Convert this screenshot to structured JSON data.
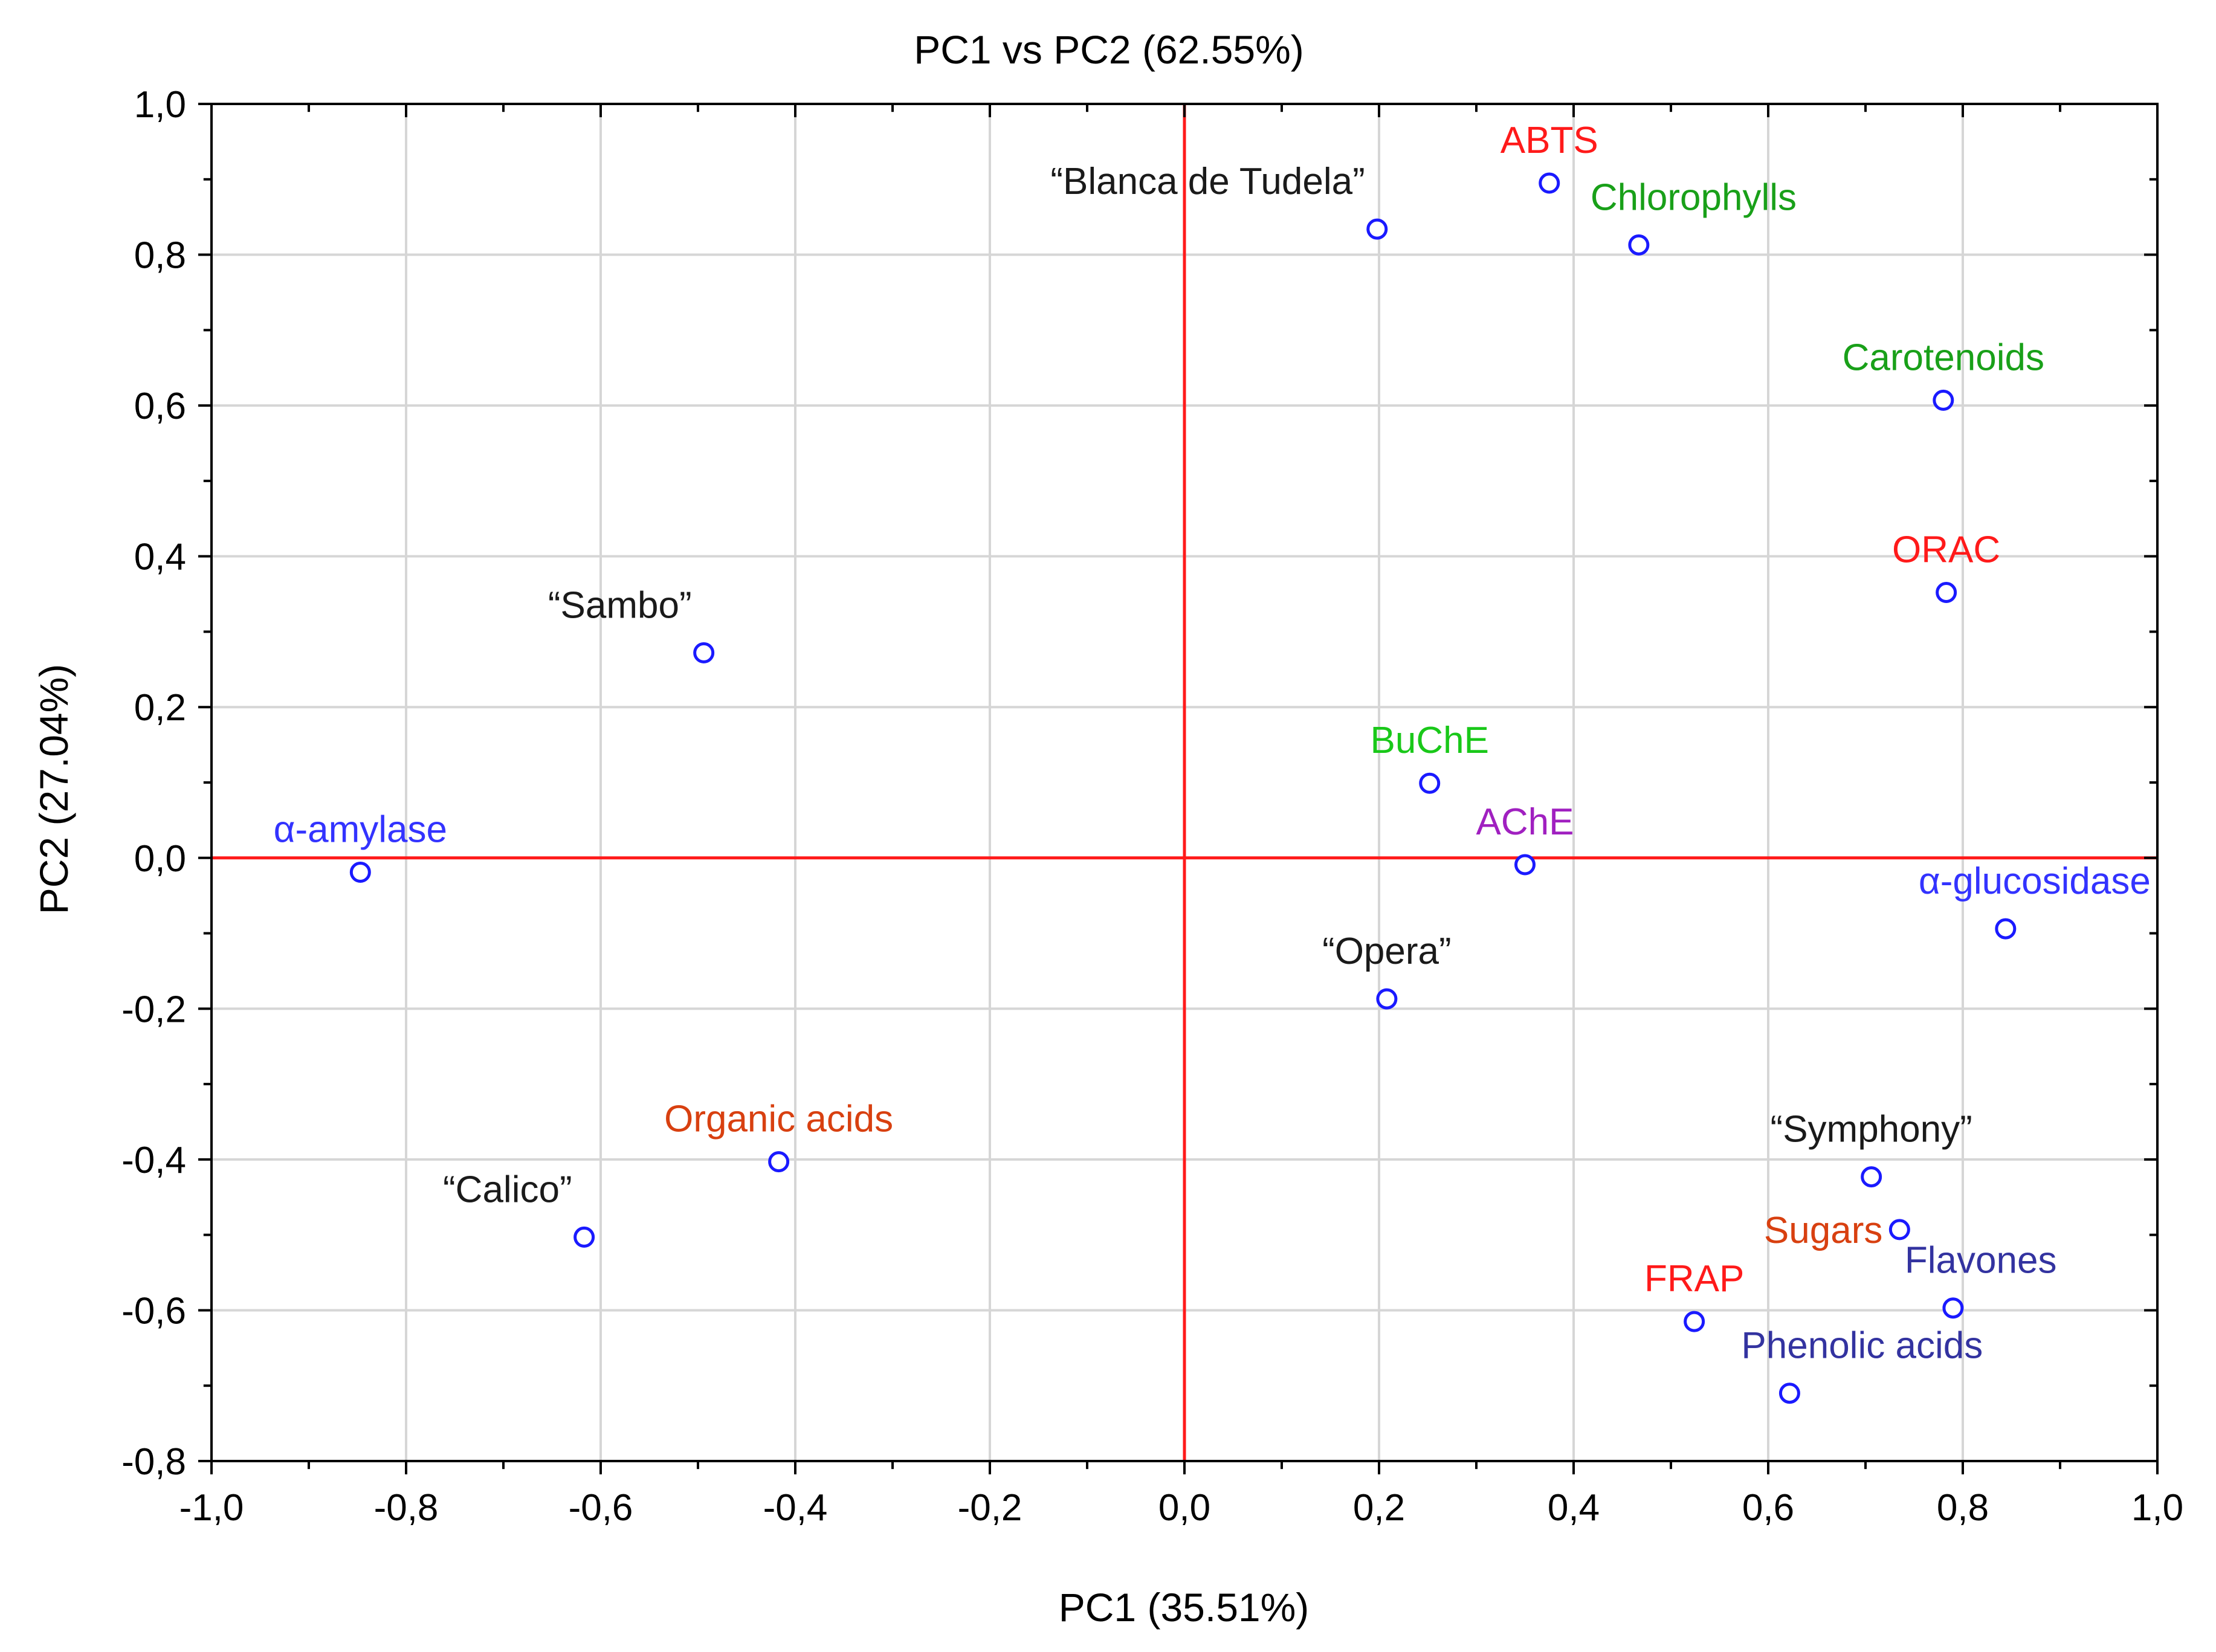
{
  "chart_data": {
    "type": "scatter",
    "title": "PC1 vs PC2 (62.55%)",
    "xlabel": "PC1 (35.51%)",
    "ylabel": "PC2 (27.04%)",
    "xlim": [
      -1.0,
      1.0
    ],
    "ylim": [
      -0.8,
      1.0
    ],
    "xticks": [
      -1.0,
      -0.8,
      -0.6,
      -0.4,
      -0.2,
      0.0,
      0.2,
      0.4,
      0.6,
      0.8,
      1.0
    ],
    "yticks": [
      -0.8,
      -0.6,
      -0.4,
      -0.2,
      0.0,
      0.2,
      0.4,
      0.6,
      0.8,
      1.0
    ],
    "xtick_labels": [
      "-1,0",
      "-0,8",
      "-0,6",
      "-0,4",
      "-0,2",
      "0,0",
      "0,2",
      "0,4",
      "0,6",
      "0,8",
      "1,0"
    ],
    "ytick_labels": [
      "-0,8",
      "-0,6",
      "-0,4",
      "-0,2",
      "0,0",
      "0,2",
      "0,4",
      "0,6",
      "0,8",
      "1,0"
    ],
    "grid": true,
    "reference_lines": {
      "x": 0.0,
      "y": 0.0,
      "color": "#ff1a1a"
    },
    "marker_color": "#1a1aff",
    "points": [
      {
        "label": "ABTS",
        "x": 0.375,
        "y": 0.895,
        "color": "#ff1a1a",
        "label_pos": "above"
      },
      {
        "label": "“Blanca de Tudela”",
        "x": 0.198,
        "y": 0.834,
        "color": "#1a1a1a",
        "label_pos": "above-left"
      },
      {
        "label": "Chlorophylls",
        "x": 0.467,
        "y": 0.813,
        "color": "#19a019",
        "label_pos": "above-right"
      },
      {
        "label": "Carotenoids",
        "x": 0.78,
        "y": 0.607,
        "color": "#19a019",
        "label_pos": "above"
      },
      {
        "label": "ORAC",
        "x": 0.783,
        "y": 0.352,
        "color": "#ff1a1a",
        "label_pos": "above"
      },
      {
        "label": "“Sambo”",
        "x": -0.494,
        "y": 0.272,
        "color": "#1a1a1a",
        "label_pos": "above-left"
      },
      {
        "label": "BuChE",
        "x": 0.252,
        "y": 0.099,
        "color": "#19c819",
        "label_pos": "above"
      },
      {
        "label": "α-amylase",
        "x": -0.847,
        "y": -0.019,
        "color": "#3333ff",
        "label_pos": "above"
      },
      {
        "label": "AChE",
        "x": 0.35,
        "y": -0.009,
        "color": "#a020c0",
        "label_pos": "above"
      },
      {
        "label": "α-glucosidase",
        "x": 0.844,
        "y": -0.094,
        "color": "#3333ff",
        "label_pos": "above-left"
      },
      {
        "label": "“Opera”",
        "x": 0.208,
        "y": -0.187,
        "color": "#1a1a1a",
        "label_pos": "above"
      },
      {
        "label": "Organic acids",
        "x": -0.417,
        "y": -0.403,
        "color": "#d84010",
        "label_pos": "above"
      },
      {
        "label": "“Symphony”",
        "x": 0.706,
        "y": -0.423,
        "color": "#1a1a1a",
        "label_pos": "above"
      },
      {
        "label": "“Calico”",
        "x": -0.617,
        "y": -0.503,
        "color": "#1a1a1a",
        "label_pos": "above-left"
      },
      {
        "label": "Sugars",
        "x": 0.735,
        "y": -0.493,
        "color": "#d84010",
        "label_pos": "left"
      },
      {
        "label": "Flavones",
        "x": 0.79,
        "y": -0.597,
        "color": "#3333a0",
        "label_pos": "above-right"
      },
      {
        "label": "FRAP",
        "x": 0.524,
        "y": -0.615,
        "color": "#ff1a1a",
        "label_pos": "above"
      },
      {
        "label": "Phenolic acids",
        "x": 0.622,
        "y": -0.71,
        "color": "#3333a0",
        "label_pos": "above-right"
      }
    ]
  }
}
